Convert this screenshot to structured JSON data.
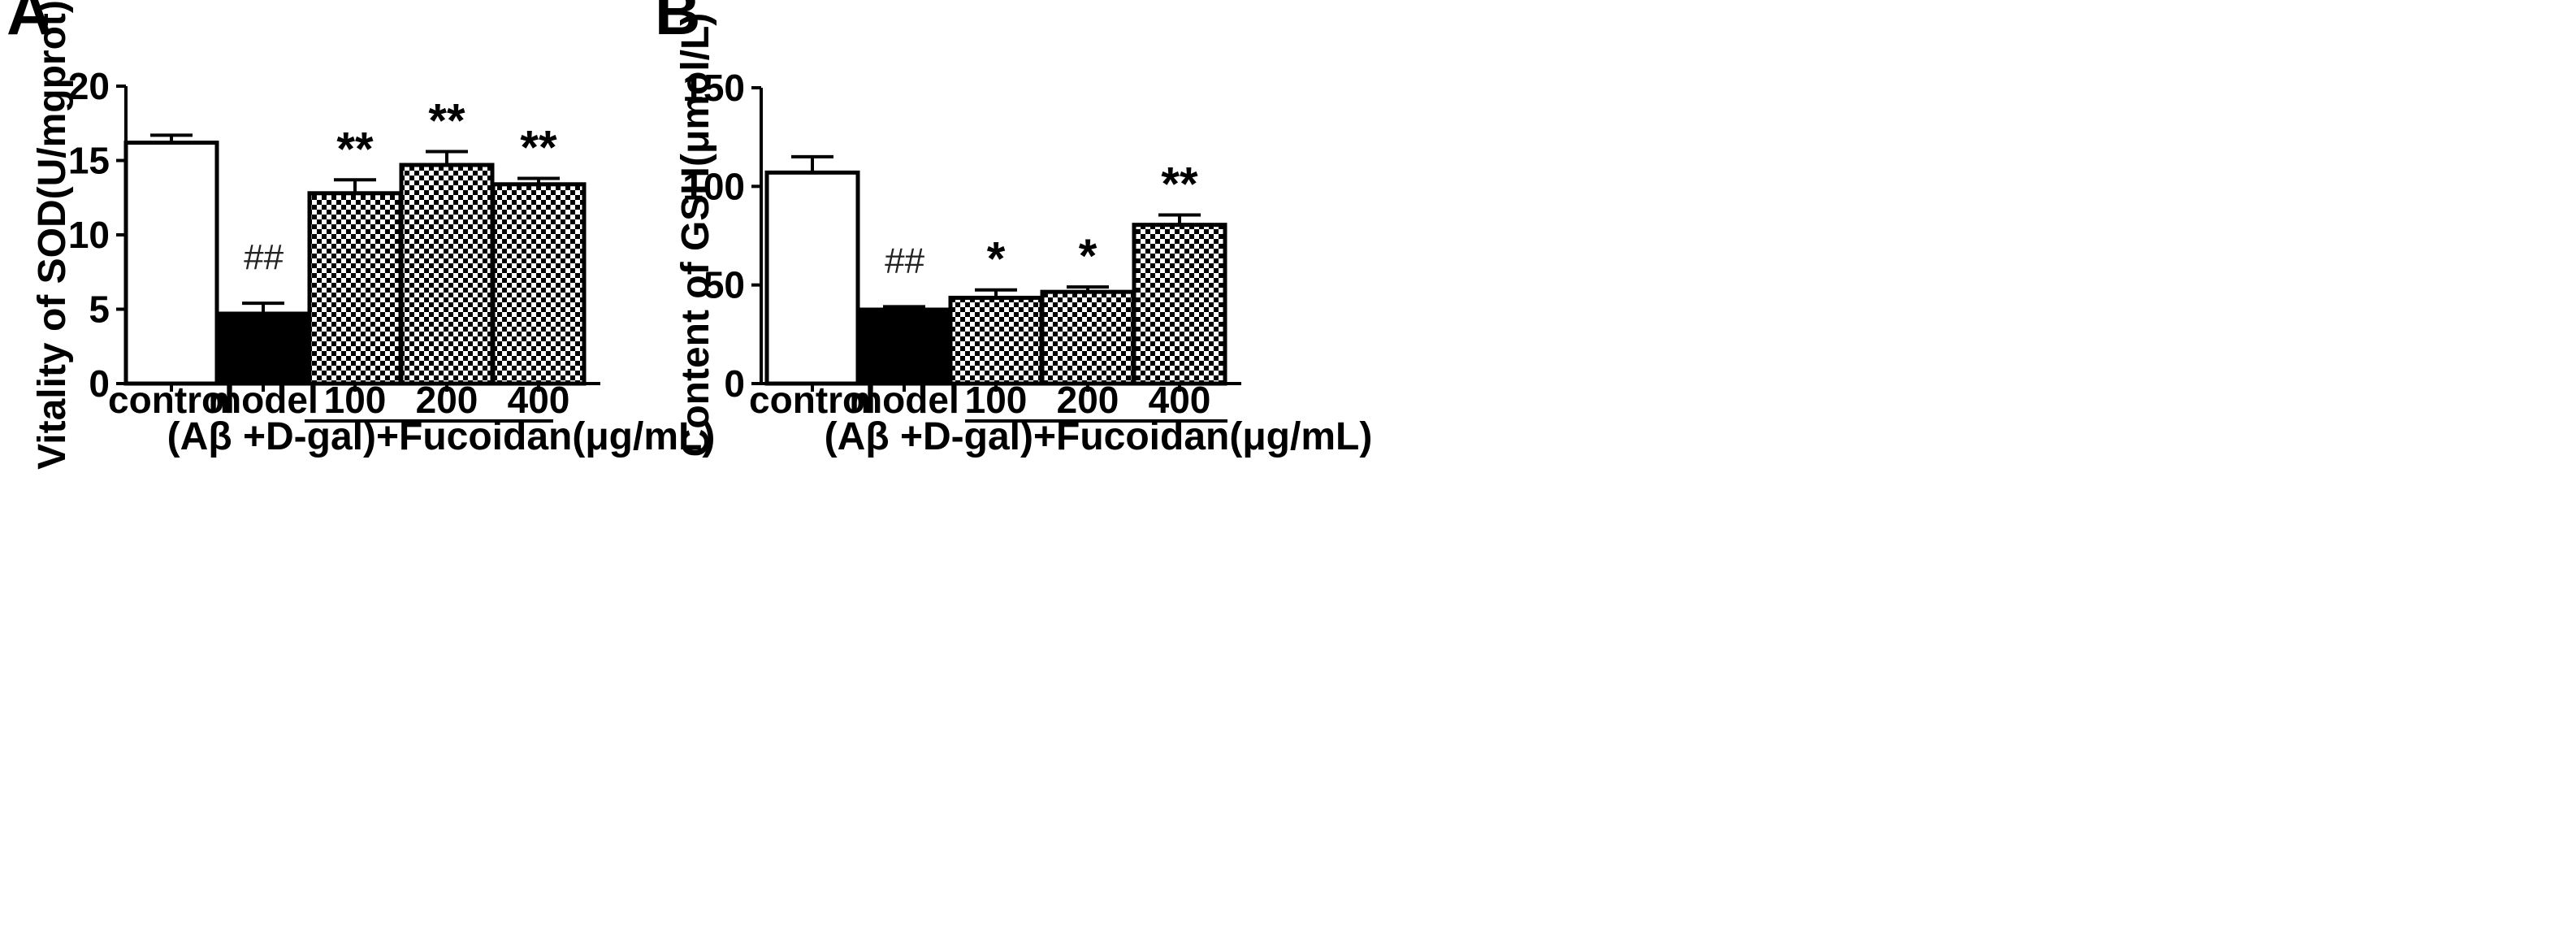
{
  "chart_data": [
    {
      "type": "bar",
      "panel_label": "A",
      "ylabel": "Vitality of SOD(U/mgprot)",
      "ylim": [
        0,
        20
      ],
      "yticks": [
        0,
        5,
        10,
        15,
        20
      ],
      "categories": [
        "control",
        "model",
        "100",
        "200",
        "400"
      ],
      "values": [
        16.2,
        4.7,
        12.8,
        14.7,
        13.4
      ],
      "errors": [
        0.5,
        0.7,
        0.9,
        0.9,
        0.4
      ],
      "fills": [
        "white",
        "black",
        "checker",
        "checker",
        "checker"
      ],
      "annotations": [
        "",
        "##",
        "**",
        "**",
        "**"
      ],
      "group_label": "(Aβ +D-gal)+Fucoidan(μg/mL)"
    },
    {
      "type": "bar",
      "panel_label": "B",
      "ylabel": "Content of GSH(μmol/L)",
      "ylim": [
        0,
        150
      ],
      "yticks": [
        0,
        50,
        100,
        150
      ],
      "categories": [
        "control",
        "model",
        "100",
        "200",
        "400"
      ],
      "values": [
        107,
        37.5,
        43.5,
        46.5,
        80.5
      ],
      "errors": [
        8,
        1.5,
        4,
        2.5,
        5
      ],
      "fills": [
        "white",
        "black",
        "checker",
        "checker",
        "checker"
      ],
      "annotations": [
        "",
        "##",
        "*",
        "*",
        "**"
      ],
      "group_label": "(Aβ +D-gal)+Fucoidan(μg/mL)"
    }
  ],
  "colors": {
    "bar_outline": "#000000",
    "model_fill": "#000000",
    "control_fill": "#ffffff",
    "checker_dark": "#000000",
    "checker_light": "#ffffff"
  }
}
